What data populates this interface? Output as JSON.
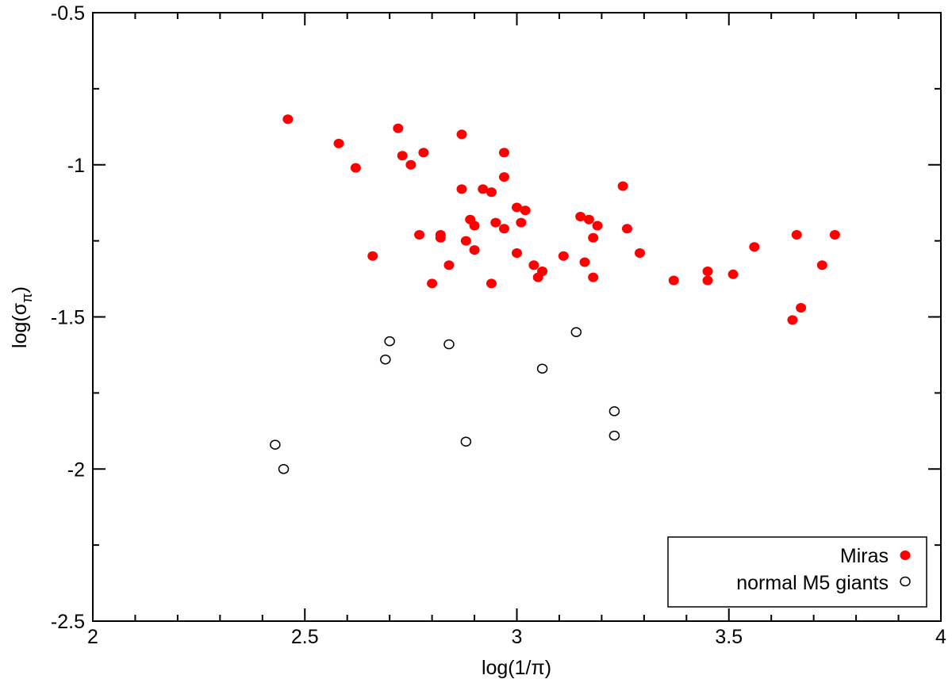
{
  "chart_data": {
    "type": "scatter",
    "title": "",
    "xlabel": "log(1/π)",
    "ylabel_main": "log(σ",
    "ylabel_sub": "π",
    "ylabel_close": ")",
    "xlim": [
      2,
      4
    ],
    "ylim": [
      -2.5,
      -0.5
    ],
    "x_ticks": [
      2,
      2.5,
      3,
      3.5,
      4
    ],
    "x_tick_labels": [
      "2",
      "2.5",
      "3",
      "3.5",
      "4"
    ],
    "y_ticks": [
      -2.5,
      -2,
      -1.5,
      -1,
      -0.5
    ],
    "y_tick_labels": [
      "-2.5",
      "-2",
      "-1.5",
      "-1",
      "-0.5"
    ],
    "grid": false,
    "legend_position": "bottom-right",
    "series": [
      {
        "name": "Miras",
        "marker": "filled-circle",
        "color": "#ff0000",
        "points": [
          [
            2.46,
            -0.85
          ],
          [
            2.58,
            -0.93
          ],
          [
            2.62,
            -1.01
          ],
          [
            2.66,
            -1.3
          ],
          [
            2.72,
            -0.88
          ],
          [
            2.73,
            -0.97
          ],
          [
            2.75,
            -1.0
          ],
          [
            2.77,
            -1.23
          ],
          [
            2.78,
            -0.96
          ],
          [
            2.8,
            -1.39
          ],
          [
            2.82,
            -1.23
          ],
          [
            2.82,
            -1.24
          ],
          [
            2.84,
            -1.33
          ],
          [
            2.87,
            -0.9
          ],
          [
            2.87,
            -1.08
          ],
          [
            2.88,
            -1.25
          ],
          [
            2.89,
            -1.18
          ],
          [
            2.9,
            -1.2
          ],
          [
            2.9,
            -1.28
          ],
          [
            2.92,
            -1.08
          ],
          [
            2.94,
            -1.39
          ],
          [
            2.94,
            -1.09
          ],
          [
            2.95,
            -1.19
          ],
          [
            2.97,
            -0.96
          ],
          [
            2.97,
            -1.21
          ],
          [
            2.97,
            -1.04
          ],
          [
            3.0,
            -1.29
          ],
          [
            3.0,
            -1.14
          ],
          [
            3.01,
            -1.19
          ],
          [
            3.02,
            -1.15
          ],
          [
            3.04,
            -1.33
          ],
          [
            3.05,
            -1.37
          ],
          [
            3.06,
            -1.35
          ],
          [
            3.11,
            -1.3
          ],
          [
            3.15,
            -1.17
          ],
          [
            3.16,
            -1.32
          ],
          [
            3.17,
            -1.18
          ],
          [
            3.18,
            -1.24
          ],
          [
            3.18,
            -1.37
          ],
          [
            3.19,
            -1.2
          ],
          [
            3.25,
            -1.07
          ],
          [
            3.26,
            -1.21
          ],
          [
            3.29,
            -1.29
          ],
          [
            3.37,
            -1.38
          ],
          [
            3.45,
            -1.35
          ],
          [
            3.45,
            -1.38
          ],
          [
            3.51,
            -1.36
          ],
          [
            3.56,
            -1.27
          ],
          [
            3.65,
            -1.51
          ],
          [
            3.66,
            -1.23
          ],
          [
            3.67,
            -1.47
          ],
          [
            3.72,
            -1.33
          ],
          [
            3.75,
            -1.23
          ]
        ]
      },
      {
        "name": "normal M5 giants",
        "marker": "open-circle",
        "color": "#000000",
        "points": [
          [
            2.43,
            -1.92
          ],
          [
            2.45,
            -2.0
          ],
          [
            2.69,
            -1.64
          ],
          [
            2.7,
            -1.58
          ],
          [
            2.84,
            -1.59
          ],
          [
            2.88,
            -1.91
          ],
          [
            3.06,
            -1.67
          ],
          [
            3.14,
            -1.55
          ],
          [
            3.23,
            -1.89
          ],
          [
            3.23,
            -1.81
          ]
        ]
      }
    ]
  }
}
